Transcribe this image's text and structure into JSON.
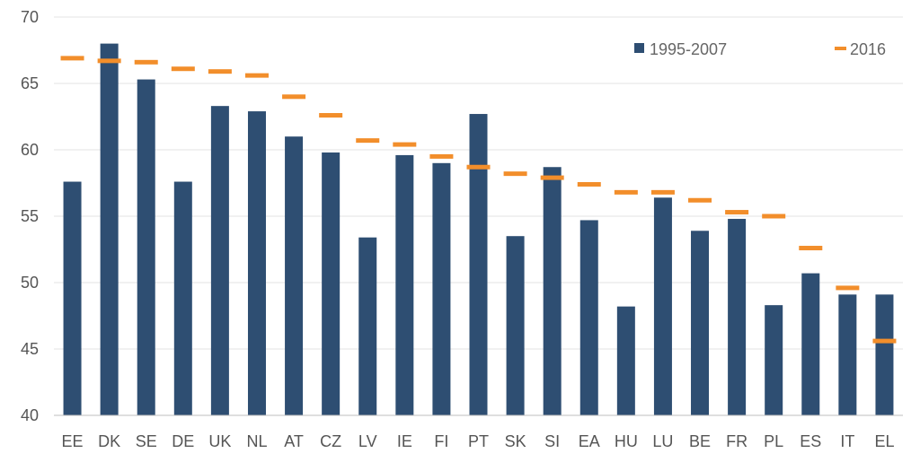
{
  "chart_data": {
    "type": "bar",
    "categories": [
      "EE",
      "DK",
      "SE",
      "DE",
      "UK",
      "NL",
      "AT",
      "CZ",
      "LV",
      "IE",
      "FI",
      "PT",
      "SK",
      "SI",
      "EA",
      "HU",
      "LU",
      "BE",
      "FR",
      "PL",
      "ES",
      "IT",
      "EL"
    ],
    "series": [
      {
        "name": "1995-2007",
        "type": "bar",
        "color": "#2e4e72",
        "values": [
          57.6,
          68.0,
          65.3,
          57.6,
          63.3,
          62.9,
          61.0,
          59.8,
          53.4,
          59.6,
          59.0,
          62.7,
          53.5,
          58.7,
          54.7,
          48.2,
          56.4,
          53.9,
          54.8,
          48.3,
          50.7,
          49.1,
          49.1
        ]
      },
      {
        "name": "2016",
        "type": "marker",
        "color": "#f28e2b",
        "values": [
          66.9,
          66.7,
          66.6,
          66.1,
          65.9,
          65.6,
          64.0,
          62.6,
          60.7,
          60.4,
          59.5,
          58.7,
          58.2,
          57.9,
          57.4,
          56.8,
          56.8,
          56.2,
          55.3,
          55.0,
          52.6,
          49.6,
          45.6
        ]
      }
    ],
    "y_axis": {
      "min": 40,
      "max": 70,
      "ticks": [
        "70",
        "65",
        "60",
        "55",
        "50",
        "45",
        "40"
      ],
      "tick_values": [
        70,
        65,
        60,
        55,
        50,
        45,
        40
      ]
    },
    "grid": true,
    "legend": {
      "placement": "top-right",
      "items": [
        {
          "label": "1995-2007",
          "color": "#2e4e72",
          "shape": "square"
        },
        {
          "label": "2016",
          "color": "#f28e2b",
          "shape": "dash"
        }
      ]
    }
  }
}
